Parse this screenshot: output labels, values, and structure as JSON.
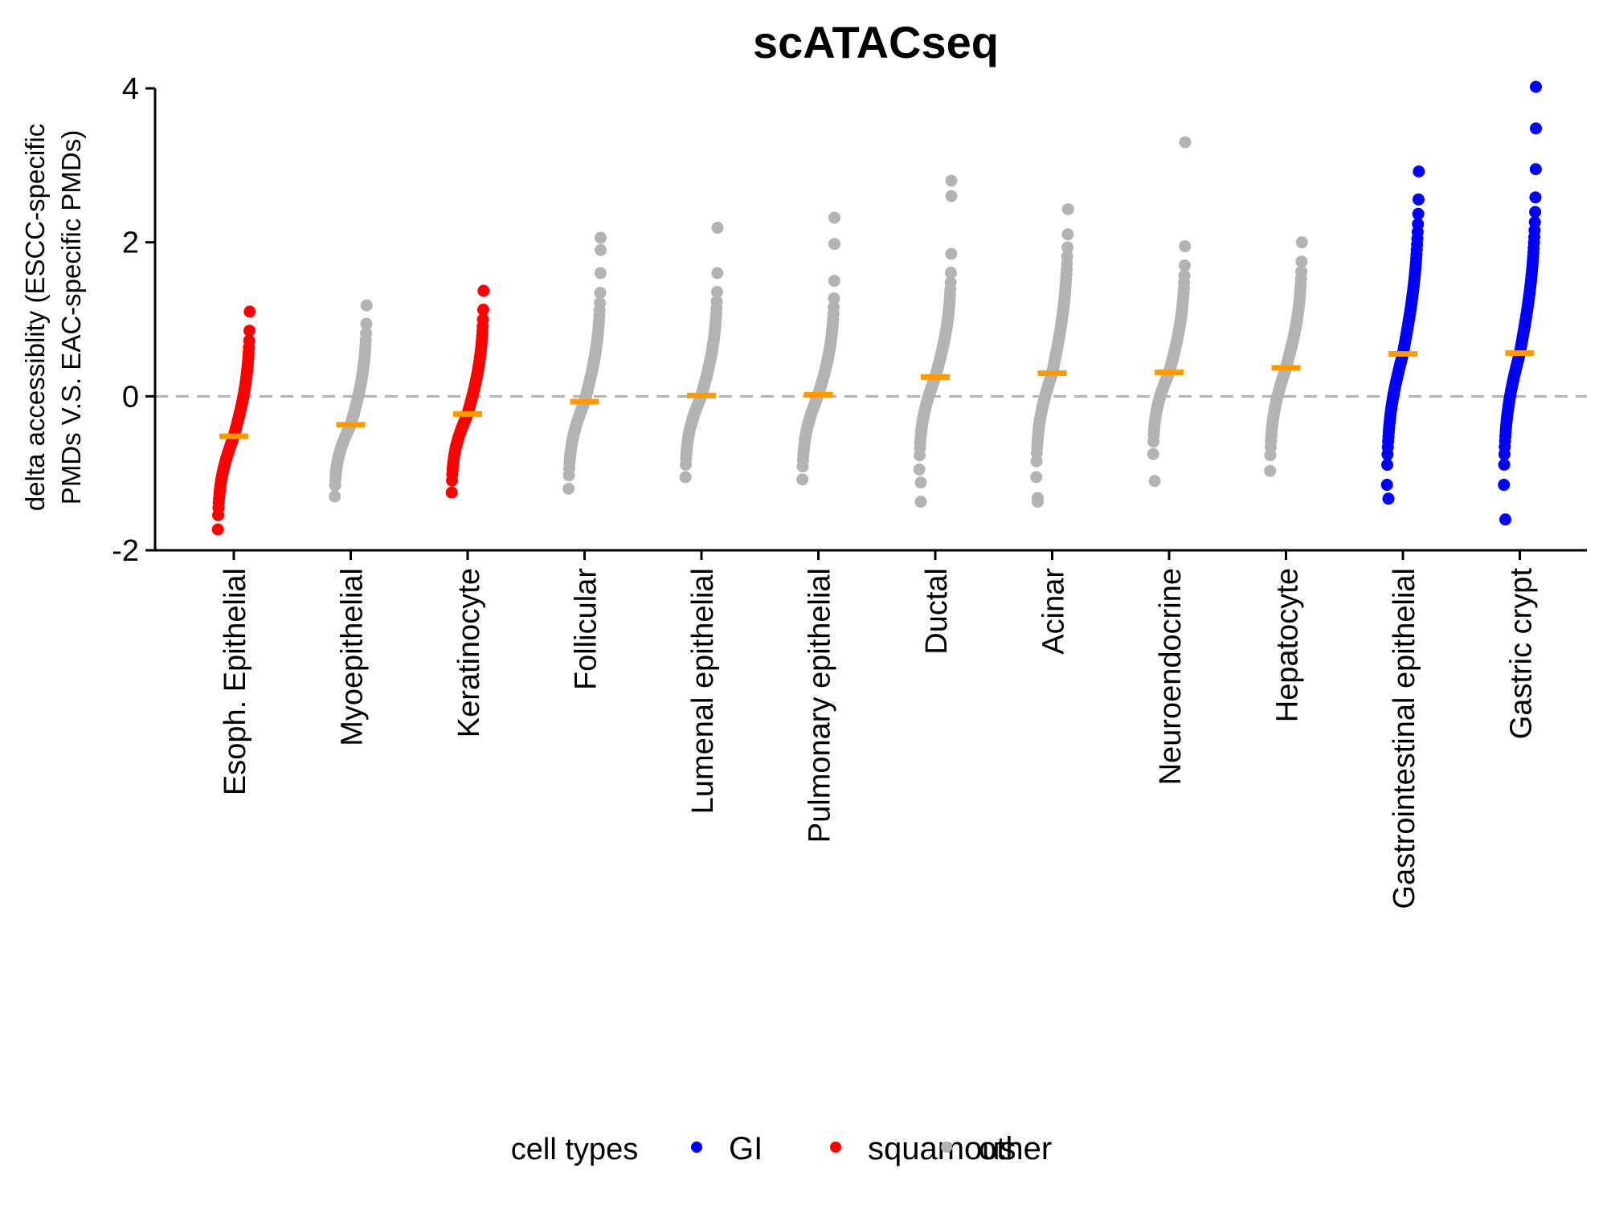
{
  "chart_data": {
    "type": "scatter",
    "title": "scATACseq",
    "ylabel_lines": [
      "delta accessiblity (ESCC-specific",
      "PMDs V.S. EAC-specific PMDs)"
    ],
    "xlabel": "",
    "ylim": [
      -2,
      4.3
    ],
    "yticks": [
      -2,
      0,
      2,
      4
    ],
    "reference_line": 0,
    "grid": false,
    "legend": {
      "title": "cell types",
      "placement": "bottom",
      "entries": [
        {
          "label": "GI",
          "color": "#0000ff"
        },
        {
          "label": "squamous",
          "color": "#ff0000"
        },
        {
          "label": "other",
          "color": "#b3b3b3"
        }
      ]
    },
    "colors": {
      "GI": "#0000ff",
      "squamous": "#ff0000",
      "other": "#b3b3b3",
      "median": "#ff9900",
      "reference": "#b3b3b3"
    },
    "categories": [
      {
        "name": "Esoph. Epithelial",
        "group": "squamous",
        "min": -1.73,
        "max": 1.1,
        "median": -0.52,
        "low_outliers": [],
        "high_outliers": []
      },
      {
        "name": "Myoepithelial",
        "group": "other",
        "min": -1.3,
        "max": 1.18,
        "median": -0.37,
        "low_outliers": [],
        "high_outliers": []
      },
      {
        "name": "Keratinocyte",
        "group": "squamous",
        "min": -1.25,
        "max": 1.37,
        "median": -0.23,
        "low_outliers": [],
        "high_outliers": []
      },
      {
        "name": "Follicular",
        "group": "other",
        "min": -1.2,
        "max": 1.6,
        "median": -0.07,
        "low_outliers": [],
        "high_outliers": [
          1.9,
          2.06
        ]
      },
      {
        "name": "Lumenal epithelial",
        "group": "other",
        "min": -1.05,
        "max": 1.6,
        "median": 0.01,
        "low_outliers": [],
        "high_outliers": [
          2.19
        ]
      },
      {
        "name": "Pulmonary epithelial",
        "group": "other",
        "min": -1.08,
        "max": 1.5,
        "median": 0.02,
        "low_outliers": [],
        "high_outliers": [
          1.98,
          2.32
        ]
      },
      {
        "name": "Ductal",
        "group": "other",
        "min": -0.95,
        "max": 1.85,
        "median": 0.25,
        "low_outliers": [
          -1.12,
          -1.37
        ],
        "high_outliers": [
          2.6,
          2.8
        ]
      },
      {
        "name": "Acinar",
        "group": "other",
        "min": -1.05,
        "max": 2.43,
        "median": 0.3,
        "low_outliers": [
          -1.32,
          -1.37
        ],
        "high_outliers": []
      },
      {
        "name": "Neuroendocrine",
        "group": "other",
        "min": -0.75,
        "max": 1.95,
        "median": 0.31,
        "low_outliers": [
          -1.1
        ],
        "high_outliers": [
          3.3
        ]
      },
      {
        "name": "Hepatocyte",
        "group": "other",
        "min": -0.97,
        "max": 2.0,
        "median": 0.37,
        "low_outliers": [],
        "high_outliers": []
      },
      {
        "name": "Gastrointestinal epithelial",
        "group": "GI",
        "min": -1.15,
        "max": 2.92,
        "median": 0.55,
        "low_outliers": [
          -1.33
        ],
        "high_outliers": []
      },
      {
        "name": "Gastric crypt",
        "group": "GI",
        "min": -1.15,
        "max": 2.95,
        "median": 0.56,
        "low_outliers": [
          -1.6
        ],
        "high_outliers": [
          3.48,
          4.02
        ]
      }
    ]
  }
}
